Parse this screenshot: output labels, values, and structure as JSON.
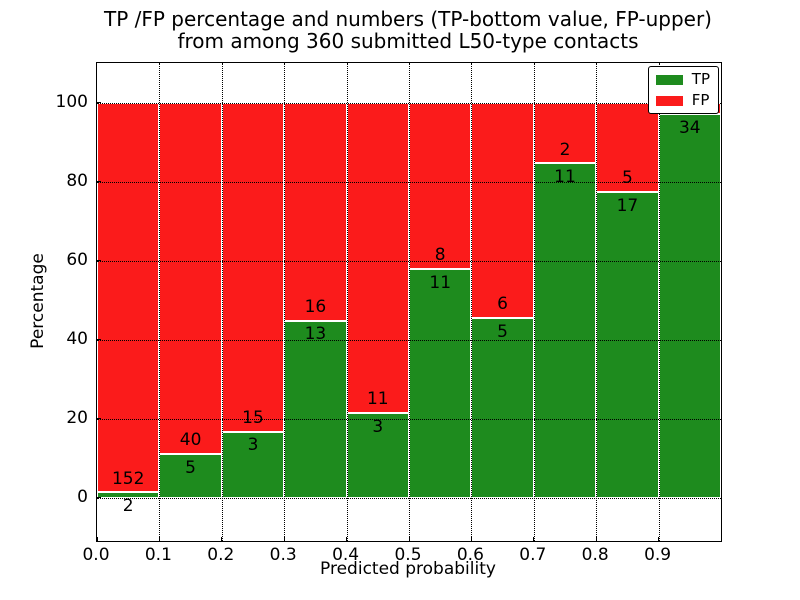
{
  "chart_data": {
    "type": "bar",
    "stacked": true,
    "title_line1": "TP /FP percentage and numbers (TP-bottom value, FP-upper)",
    "title_line2": "from among 360 submitted L50-type contacts",
    "xlabel": "Predicted probability",
    "ylabel": "Percentage",
    "xlim": [
      0.0,
      1.0
    ],
    "ylim": [
      -11,
      110
    ],
    "x_tick_values": [
      0.0,
      0.1,
      0.2,
      0.3,
      0.4,
      0.5,
      0.6,
      0.7,
      0.8,
      0.9
    ],
    "x_tick_labels": [
      "0.0",
      "0.1",
      "0.2",
      "0.3",
      "0.4",
      "0.5",
      "0.6",
      "0.7",
      "0.8",
      "0.9"
    ],
    "y_tick_values": [
      0,
      20,
      40,
      60,
      80,
      100
    ],
    "y_tick_labels": [
      "0",
      "20",
      "40",
      "60",
      "80",
      "100"
    ],
    "grid_style": "dotted",
    "legend_position": "upper-right",
    "legend": [
      {
        "label": "TP",
        "color": "#1e8b1e"
      },
      {
        "label": "FP",
        "color": "#fb1b1b"
      }
    ],
    "total_contacts": 360,
    "bins": [
      {
        "x0": 0.0,
        "x1": 0.1,
        "tp": 2,
        "fp": 152,
        "tp_pct": 1.3,
        "tp_label": "2",
        "fp_label": "152"
      },
      {
        "x0": 0.1,
        "x1": 0.2,
        "tp": 5,
        "fp": 40,
        "tp_pct": 11.1,
        "tp_label": "5",
        "fp_label": "40"
      },
      {
        "x0": 0.2,
        "x1": 0.3,
        "tp": 3,
        "fp": 15,
        "tp_pct": 16.7,
        "tp_label": "3",
        "fp_label": "15"
      },
      {
        "x0": 0.3,
        "x1": 0.4,
        "tp": 13,
        "fp": 16,
        "tp_pct": 44.8,
        "tp_label": "13",
        "fp_label": "16"
      },
      {
        "x0": 0.4,
        "x1": 0.5,
        "tp": 3,
        "fp": 11,
        "tp_pct": 21.4,
        "tp_label": "3",
        "fp_label": "11"
      },
      {
        "x0": 0.5,
        "x1": 0.6,
        "tp": 11,
        "fp": 8,
        "tp_pct": 57.9,
        "tp_label": "11",
        "fp_label": "8"
      },
      {
        "x0": 0.6,
        "x1": 0.7,
        "tp": 5,
        "fp": 6,
        "tp_pct": 45.5,
        "tp_label": "5",
        "fp_label": "6"
      },
      {
        "x0": 0.7,
        "x1": 0.8,
        "tp": 11,
        "fp": 2,
        "tp_pct": 84.6,
        "tp_label": "11",
        "fp_label": "2"
      },
      {
        "x0": 0.8,
        "x1": 0.9,
        "tp": 17,
        "fp": 5,
        "tp_pct": 77.3,
        "tp_label": "17",
        "fp_label": "5"
      },
      {
        "x0": 0.9,
        "x1": 1.0,
        "tp": 34,
        "fp": 1,
        "tp_pct": 97.1,
        "tp_label": "34",
        "fp_label": ""
      }
    ],
    "colors": {
      "tp": "#1e8b1e",
      "fp": "#fb1b1b",
      "background": "#ffffff",
      "text": "#000000"
    }
  }
}
